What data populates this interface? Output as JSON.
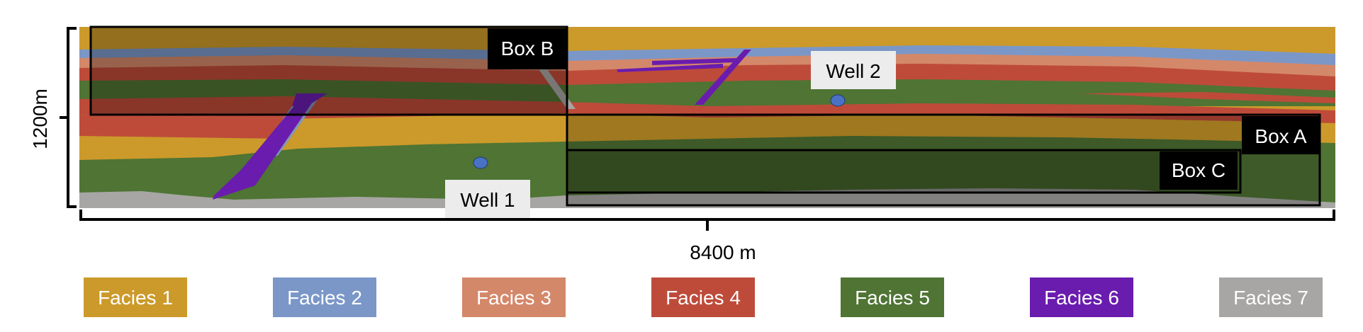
{
  "figure": {
    "vertical_scale_label": "1200m",
    "horizontal_scale_label": "8400 m"
  },
  "boxes": [
    {
      "key": "box-a",
      "label": "Box A"
    },
    {
      "key": "box-b",
      "label": "Box B"
    },
    {
      "key": "box-c",
      "label": "Box C"
    }
  ],
  "wells": [
    {
      "key": "well-1",
      "label": "Well 1"
    },
    {
      "key": "well-2",
      "label": "Well 2"
    }
  ],
  "legend": [
    {
      "label": "Facies 1",
      "color": "#CC9A2A"
    },
    {
      "label": "Facies 2",
      "color": "#7B97C8"
    },
    {
      "label": "Facies 3",
      "color": "#D4886A"
    },
    {
      "label": "Facies 4",
      "color": "#BE4B3A"
    },
    {
      "label": "Facies 5",
      "color": "#4F7434"
    },
    {
      "label": "Facies 6",
      "color": "#6A1CAE"
    },
    {
      "label": "Facies 7",
      "color": "#A7A6A4"
    }
  ]
}
